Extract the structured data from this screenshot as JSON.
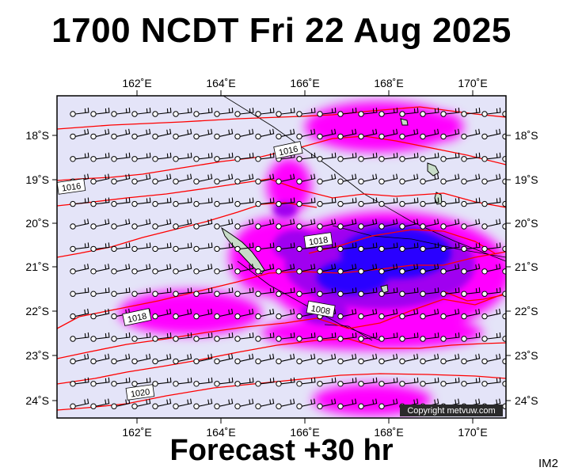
{
  "title": "1700 NCDT Fri 22 Aug 2025",
  "subtitle": "Forecast +30 hr",
  "image_tag": "IM2",
  "copyright": "Copyright metvuw.com",
  "map": {
    "lon_labels": [
      "162˚E",
      "164˚E",
      "166˚E",
      "168˚E",
      "170˚E"
    ],
    "lat_labels": [
      "18˚S",
      "19˚S",
      "20˚S",
      "21˚S",
      "22˚S",
      "23˚S",
      "24˚S"
    ],
    "isobar_labels": [
      "1016",
      "1016",
      "1018",
      "1008",
      "1018",
      "1020"
    ],
    "colors": {
      "background": "#e4e4f8",
      "isobar": "#ff0000",
      "rain_light": "#ff00ff",
      "rain_mid": "#b000ff",
      "rain_heavy": "#3000ff",
      "land": "#c8dcc8"
    }
  }
}
